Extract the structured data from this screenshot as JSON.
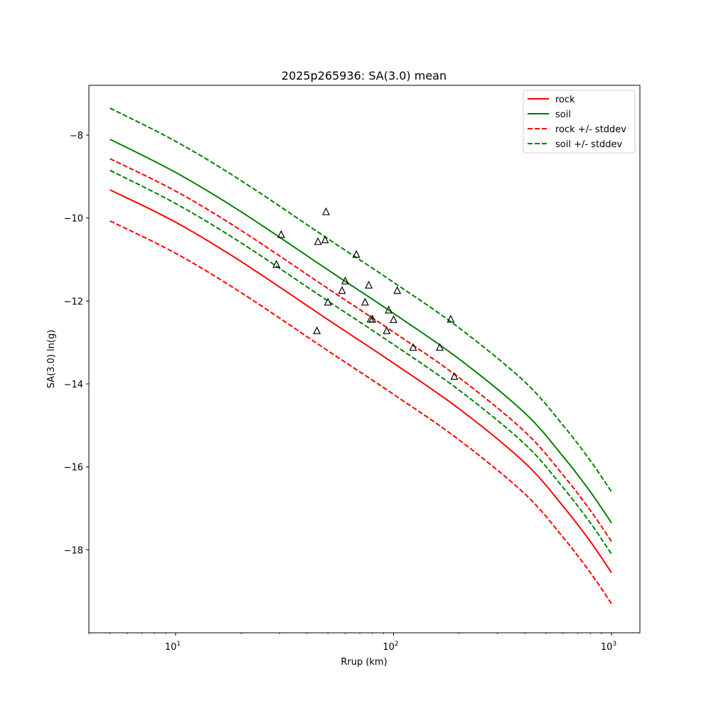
{
  "chart_data": {
    "type": "line",
    "title": "2025p265936: SA(3.0) mean",
    "xlabel": "Rrup (km)",
    "ylabel": "SA(3.0) ln(g)",
    "xscale": "log",
    "xlim": [
      4,
      1350
    ],
    "ylim": [
      -20.0,
      -6.8
    ],
    "grid": false,
    "legend_position": "top-right",
    "x_ticks": [
      {
        "value": 10,
        "base": "10",
        "exp": "1"
      },
      {
        "value": 100,
        "base": "10",
        "exp": "2"
      },
      {
        "value": 1000,
        "base": "10",
        "exp": "3"
      }
    ],
    "y_ticks": [
      {
        "value": -8,
        "label": "−8"
      },
      {
        "value": -10,
        "label": "−10"
      },
      {
        "value": -12,
        "label": "−12"
      },
      {
        "value": -14,
        "label": "−14"
      },
      {
        "value": -16,
        "label": "−16"
      },
      {
        "value": -18,
        "label": "−18"
      }
    ],
    "series": [
      {
        "name": "rock",
        "color": "#ff0000",
        "style": "solid",
        "x": [
          5,
          10,
          20,
          50,
          100,
          200,
          400,
          600,
          800,
          1000
        ],
        "y": [
          -9.32,
          -10.1,
          -11.05,
          -12.45,
          -13.5,
          -14.6,
          -15.9,
          -16.95,
          -17.8,
          -18.55
        ]
      },
      {
        "name": "soil",
        "color": "#008000",
        "style": "solid",
        "x": [
          5,
          10,
          20,
          50,
          100,
          200,
          400,
          600,
          800,
          1000
        ],
        "y": [
          -8.1,
          -8.9,
          -9.85,
          -11.25,
          -12.3,
          -13.4,
          -14.7,
          -15.75,
          -16.6,
          -17.35
        ]
      },
      {
        "name": "rock +/- stddev",
        "color": "#ff0000",
        "style": "dashed",
        "x": [
          5,
          10,
          20,
          50,
          100,
          200,
          400,
          600,
          800,
          1000
        ],
        "y": [
          -8.57,
          -9.35,
          -10.3,
          -11.7,
          -12.75,
          -13.85,
          -15.15,
          -16.2,
          -17.05,
          -17.8
        ]
      },
      {
        "name": "",
        "color": "#ff0000",
        "style": "dashed",
        "x": [
          5,
          10,
          20,
          50,
          100,
          200,
          400,
          600,
          800,
          1000
        ],
        "y": [
          -10.07,
          -10.85,
          -11.8,
          -13.2,
          -14.25,
          -15.35,
          -16.65,
          -17.7,
          -18.55,
          -19.3
        ]
      },
      {
        "name": "soil +/- stddev",
        "color": "#008000",
        "style": "dashed",
        "x": [
          5,
          10,
          20,
          50,
          100,
          200,
          400,
          600,
          800,
          1000
        ],
        "y": [
          -7.35,
          -8.15,
          -9.1,
          -10.5,
          -11.55,
          -12.65,
          -13.95,
          -15.0,
          -15.85,
          -16.6
        ]
      },
      {
        "name": "",
        "color": "#008000",
        "style": "dashed",
        "x": [
          5,
          10,
          20,
          50,
          100,
          200,
          400,
          600,
          800,
          1000
        ],
        "y": [
          -8.85,
          -9.65,
          -10.6,
          -12.0,
          -13.05,
          -14.15,
          -15.45,
          -16.5,
          -17.35,
          -18.1
        ]
      }
    ],
    "observations": {
      "marker": "triangle",
      "color": "#000000",
      "points": [
        {
          "x": 29,
          "y": -11.12
        },
        {
          "x": 30.5,
          "y": -10.4
        },
        {
          "x": 44.5,
          "y": -12.72
        },
        {
          "x": 45,
          "y": -10.57
        },
        {
          "x": 48.5,
          "y": -10.53
        },
        {
          "x": 49,
          "y": -9.85
        },
        {
          "x": 50,
          "y": -12.03
        },
        {
          "x": 58,
          "y": -11.75
        },
        {
          "x": 60,
          "y": -11.52
        },
        {
          "x": 67.5,
          "y": -10.88
        },
        {
          "x": 74,
          "y": -12.03
        },
        {
          "x": 77,
          "y": -11.62
        },
        {
          "x": 78.5,
          "y": -12.44
        },
        {
          "x": 80,
          "y": -12.44
        },
        {
          "x": 93,
          "y": -12.72
        },
        {
          "x": 95,
          "y": -12.22
        },
        {
          "x": 100,
          "y": -12.45
        },
        {
          "x": 104,
          "y": -11.75
        },
        {
          "x": 123,
          "y": -13.12
        },
        {
          "x": 163,
          "y": -13.12
        },
        {
          "x": 183,
          "y": -12.44
        },
        {
          "x": 190,
          "y": -13.82
        }
      ]
    }
  }
}
